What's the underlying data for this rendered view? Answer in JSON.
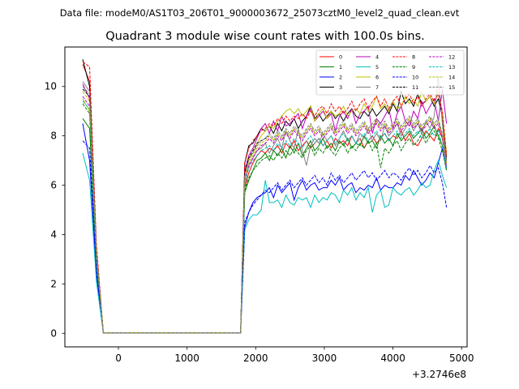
{
  "header": {
    "suptitle": "Data file: modeM0/AS1T03_206T01_9000003672_25073cztM0_level2_quad_clean.evt"
  },
  "chart_data": {
    "type": "line",
    "title": "Quadrant 3 module wise count rates with 100.0s bins.",
    "xlabel": "",
    "ylabel": "",
    "x_offset_label": "+3.2746e8",
    "xlim": [
      -780,
      5080
    ],
    "ylim": [
      -0.55,
      11.6
    ],
    "x_ticks": [
      0,
      1000,
      2000,
      3000,
      4000,
      5000
    ],
    "x_tick_labels": [
      "0",
      "1000",
      "2000",
      "3000",
      "4000",
      "5000"
    ],
    "y_ticks": [
      0,
      2,
      4,
      6,
      8,
      10
    ],
    "y_tick_labels": [
      "0",
      "2",
      "4",
      "6",
      "8",
      "10"
    ],
    "grid": false,
    "legend_position": "top-right",
    "x": [
      -520,
      -420,
      -320,
      -220,
      1780,
      1840,
      1900,
      1960,
      2020,
      2080,
      2140,
      2200,
      2260,
      2320,
      2380,
      2440,
      2500,
      2560,
      2620,
      2680,
      2740,
      2800,
      2860,
      2920,
      2980,
      3040,
      3100,
      3160,
      3220,
      3280,
      3340,
      3400,
      3460,
      3520,
      3580,
      3640,
      3700,
      3760,
      3820,
      3880,
      3940,
      4000,
      4060,
      4120,
      4180,
      4240,
      4300,
      4360,
      4420,
      4480,
      4540,
      4600,
      4660,
      4720,
      4780
    ],
    "series": [
      {
        "name": "0",
        "color": "#ff0000",
        "dash": "solid",
        "values": [
          10.9,
          10.2,
          3.2,
          0.02,
          0.02,
          5.9,
          6.5,
          6.9,
          7.2,
          7.4,
          7.3,
          7.5,
          7.4,
          7.6,
          7.3,
          7.7,
          7.5,
          7.8,
          7.4,
          7.6,
          7.8,
          7.5,
          7.7,
          7.9,
          7.6,
          7.8,
          7.5,
          7.9,
          7.7,
          7.8,
          7.6,
          8.0,
          7.7,
          7.9,
          7.5,
          7.8,
          8.0,
          7.7,
          7.9,
          8.1,
          7.8,
          8.0,
          7.9,
          8.2,
          7.8,
          8.1,
          7.7,
          7.6,
          7.9,
          8.2,
          8.0,
          7.8,
          8.3,
          7.9,
          6.9
        ]
      },
      {
        "name": "1",
        "color": "#008000",
        "dash": "solid",
        "values": [
          8.7,
          8.3,
          2.8,
          0.02,
          0.02,
          5.7,
          6.2,
          6.6,
          7.0,
          7.1,
          7.3,
          7.0,
          7.4,
          7.2,
          7.5,
          7.1,
          7.6,
          7.3,
          7.7,
          7.2,
          7.5,
          7.8,
          7.4,
          7.6,
          7.9,
          7.5,
          7.7,
          7.4,
          7.8,
          7.6,
          7.9,
          7.5,
          7.7,
          7.6,
          8.0,
          7.7,
          7.8,
          7.5,
          8.0,
          7.7,
          7.9,
          7.6,
          8.1,
          7.8,
          8.0,
          8.2,
          7.9,
          8.1,
          8.3,
          7.9,
          8.1,
          8.4,
          8.0,
          7.6,
          6.6
        ]
      },
      {
        "name": "2",
        "color": "#0000ff",
        "dash": "solid",
        "values": [
          8.5,
          7.0,
          2.4,
          0.02,
          0.02,
          4.3,
          4.9,
          5.3,
          5.5,
          5.6,
          5.7,
          5.9,
          5.5,
          6.0,
          5.7,
          5.9,
          6.1,
          5.4,
          5.9,
          6.2,
          5.8,
          6.0,
          6.1,
          5.8,
          5.9,
          5.9,
          6.2,
          6.0,
          6.3,
          5.8,
          6.0,
          6.1,
          5.7,
          5.9,
          5.8,
          6.0,
          5.9,
          6.3,
          5.8,
          6.0,
          5.9,
          5.9,
          6.1,
          6.0,
          6.4,
          6.2,
          6.6,
          6.3,
          6.0,
          6.2,
          6.5,
          6.3,
          6.9,
          7.5,
          6.7
        ]
      },
      {
        "name": "3",
        "color": "#000000",
        "dash": "solid",
        "values": [
          11.1,
          10.0,
          3.4,
          0.02,
          0.02,
          6.9,
          7.6,
          7.7,
          8.0,
          8.3,
          8.2,
          8.4,
          8.1,
          8.5,
          8.2,
          8.6,
          8.4,
          8.7,
          8.3,
          8.6,
          8.8,
          9.2,
          8.7,
          8.9,
          8.6,
          8.8,
          9.0,
          8.7,
          8.9,
          8.6,
          8.9,
          9.1,
          8.8,
          8.7,
          9.0,
          8.8,
          9.1,
          8.8,
          9.0,
          9.2,
          8.9,
          9.3,
          9.0,
          9.8,
          9.3,
          9.5,
          9.2,
          9.7,
          9.3,
          9.4,
          9.6,
          9.2,
          9.5,
          8.8,
          7.1
        ]
      },
      {
        "name": "4",
        "color": "#bf00bf",
        "dash": "solid",
        "values": [
          10.1,
          9.5,
          3.1,
          0.02,
          0.02,
          6.6,
          7.2,
          7.5,
          7.9,
          8.3,
          8.5,
          8.1,
          8.6,
          8.2,
          8.8,
          8.4,
          8.5,
          8.7,
          8.9,
          8.3,
          8.8,
          9.1,
          8.6,
          8.8,
          9.0,
          8.7,
          8.9,
          8.2,
          8.8,
          9.0,
          8.7,
          9.1,
          8.5,
          8.9,
          9.0,
          9.2,
          8.1,
          8.7,
          8.5,
          8.8,
          9.1,
          8.3,
          8.9,
          9.2,
          8.6,
          8.4,
          9.0,
          8.7,
          9.4,
          8.9,
          9.2,
          9.5,
          8.6,
          9.9,
          8.5
        ]
      },
      {
        "name": "5",
        "color": "#00bfbf",
        "dash": "solid",
        "values": [
          7.3,
          6.2,
          2.1,
          0.02,
          0.02,
          4.2,
          4.6,
          4.8,
          4.8,
          5.0,
          6.2,
          5.3,
          5.3,
          5.4,
          5.1,
          5.6,
          5.3,
          5.2,
          5.5,
          5.4,
          5.5,
          5.1,
          5.6,
          5.3,
          5.5,
          5.4,
          5.7,
          5.6,
          5.3,
          5.8,
          5.6,
          5.9,
          5.4,
          5.7,
          5.5,
          5.9,
          4.9,
          5.6,
          5.8,
          5.1,
          5.2,
          5.9,
          5.7,
          5.6,
          5.8,
          5.9,
          5.6,
          5.8,
          6.1,
          5.9,
          6.0,
          6.6,
          7.0,
          6.4,
          5.9
        ]
      },
      {
        "name": "6",
        "color": "#bfbf00",
        "dash": "solid",
        "values": [
          9.5,
          9.0,
          3.0,
          0.02,
          0.02,
          6.4,
          7.1,
          7.3,
          7.7,
          8.0,
          8.2,
          8.4,
          8.3,
          8.6,
          8.8,
          9.0,
          9.1,
          8.9,
          9.1,
          8.8,
          9.0,
          9.2,
          8.6,
          8.9,
          9.1,
          8.7,
          9.0,
          8.8,
          8.9,
          9.2,
          8.8,
          9.0,
          9.1,
          8.9,
          9.3,
          9.0,
          9.2,
          9.6,
          9.1,
          9.3,
          9.0,
          9.4,
          9.1,
          9.2,
          9.6,
          9.3,
          9.5,
          9.2,
          9.8,
          9.4,
          9.6,
          9.3,
          9.8,
          8.9,
          7.3
        ]
      },
      {
        "name": "7",
        "color": "#808080",
        "dash": "solid",
        "values": [
          10.2,
          9.8,
          3.3,
          0.02,
          0.02,
          6.0,
          6.8,
          7.1,
          7.4,
          7.5,
          7.7,
          7.3,
          7.6,
          7.9,
          7.5,
          8.2,
          7.8,
          7.5,
          8.3,
          7.4,
          6.8,
          7.6,
          7.9,
          7.7,
          8.1,
          7.8,
          8.0,
          7.6,
          7.9,
          8.2,
          7.8,
          8.0,
          7.7,
          8.1,
          7.9,
          8.3,
          7.8,
          8.1,
          7.8,
          8.4,
          8.0,
          8.2,
          8.5,
          8.0,
          8.3,
          8.6,
          8.2,
          8.5,
          8.1,
          8.6,
          8.3,
          8.8,
          10.4,
          8.5,
          6.9
        ]
      },
      {
        "name": "8",
        "color": "#ff0000",
        "dash": "dashed",
        "values": [
          11.0,
          10.8,
          3.6,
          0.02,
          0.02,
          6.9,
          7.5,
          7.8,
          8.0,
          8.2,
          8.3,
          8.5,
          8.4,
          8.7,
          8.5,
          8.8,
          8.6,
          8.8,
          8.7,
          8.9,
          8.7,
          9.0,
          8.8,
          9.1,
          9.2,
          8.9,
          9.3,
          9.0,
          9.2,
          8.9,
          9.1,
          9.4,
          9.0,
          9.3,
          9.5,
          9.1,
          9.4,
          9.6,
          9.2,
          9.5,
          9.1,
          9.4,
          9.6,
          9.2,
          9.5,
          9.7,
          9.3,
          9.6,
          9.2,
          9.5,
          9.7,
          9.4,
          9.7,
          9.0,
          7.2
        ]
      },
      {
        "name": "9",
        "color": "#008000",
        "dash": "dashed",
        "values": [
          9.3,
          8.9,
          3.0,
          0.02,
          0.02,
          5.8,
          6.3,
          6.6,
          6.8,
          7.0,
          7.1,
          7.2,
          7.0,
          7.3,
          7.1,
          7.4,
          7.2,
          7.5,
          7.3,
          7.1,
          7.4,
          7.6,
          7.2,
          7.5,
          7.3,
          7.6,
          7.4,
          7.2,
          7.5,
          7.7,
          7.3,
          7.6,
          7.4,
          7.7,
          7.5,
          7.8,
          7.4,
          7.7,
          6.7,
          7.5,
          7.3,
          7.6,
          7.8,
          7.4,
          7.7,
          7.9,
          7.6,
          7.8,
          8.1,
          7.7,
          8.0,
          8.2,
          7.9,
          7.4,
          6.6
        ]
      },
      {
        "name": "10",
        "color": "#0000ff",
        "dash": "dashed",
        "values": [
          7.8,
          7.5,
          2.6,
          0.02,
          0.02,
          4.5,
          4.9,
          5.2,
          5.4,
          5.6,
          5.8,
          5.7,
          5.9,
          6.1,
          5.8,
          6.0,
          6.2,
          5.9,
          6.1,
          6.3,
          6.0,
          6.2,
          6.4,
          6.1,
          6.3,
          6.0,
          6.5,
          6.2,
          6.4,
          6.1,
          6.3,
          6.5,
          6.2,
          6.4,
          6.6,
          6.3,
          6.5,
          6.2,
          6.4,
          6.6,
          6.3,
          6.5,
          6.4,
          6.2,
          6.5,
          6.7,
          6.4,
          6.6,
          6.3,
          6.5,
          6.8,
          6.5,
          6.7,
          6.1,
          5.1
        ]
      },
      {
        "name": "11",
        "color": "#000000",
        "dash": "dashed",
        "values": [
          9.9,
          9.6,
          3.2,
          0.02,
          0.02,
          6.5,
          7.1,
          7.4,
          7.7,
          7.8,
          7.9,
          8.0,
          7.8,
          8.1,
          7.9,
          8.2,
          8.0,
          8.3,
          8.1,
          7.9,
          8.2,
          8.4,
          8.1,
          8.3,
          8.0,
          8.2,
          8.4,
          8.1,
          8.3,
          8.5,
          8.2,
          8.4,
          8.1,
          8.3,
          8.5,
          8.2,
          8.4,
          8.6,
          8.3,
          8.5,
          8.2,
          8.4,
          8.6,
          8.3,
          8.5,
          8.7,
          8.4,
          8.6,
          8.3,
          8.5,
          8.7,
          8.4,
          8.6,
          8.0,
          7.0
        ]
      },
      {
        "name": "12",
        "color": "#bf00bf",
        "dash": "dashed",
        "values": [
          9.6,
          9.2,
          3.1,
          0.02,
          0.02,
          6.2,
          6.8,
          7.1,
          7.4,
          7.6,
          7.7,
          7.9,
          7.7,
          8.0,
          7.8,
          8.1,
          7.9,
          8.2,
          8.0,
          7.8,
          8.1,
          8.3,
          8.0,
          8.2,
          7.9,
          8.1,
          8.3,
          8.0,
          8.2,
          8.4,
          8.1,
          8.3,
          8.0,
          8.2,
          8.4,
          8.1,
          8.3,
          8.5,
          8.2,
          8.4,
          8.1,
          8.3,
          8.5,
          8.2,
          8.4,
          8.6,
          8.3,
          8.5,
          8.2,
          8.4,
          8.6,
          8.3,
          8.5,
          7.9,
          6.8
        ]
      },
      {
        "name": "13",
        "color": "#00bfbf",
        "dash": "dashed",
        "values": [
          9.4,
          9.1,
          3.0,
          0.02,
          0.02,
          6.1,
          6.7,
          7.0,
          7.2,
          7.4,
          7.5,
          7.6,
          7.4,
          7.7,
          7.5,
          7.8,
          7.6,
          7.9,
          7.7,
          7.5,
          7.8,
          8.0,
          7.7,
          7.9,
          7.6,
          7.8,
          8.0,
          7.7,
          7.9,
          8.1,
          7.8,
          8.0,
          7.7,
          7.9,
          8.1,
          7.8,
          8.0,
          8.2,
          7.9,
          8.1,
          7.8,
          8.0,
          8.2,
          7.9,
          8.1,
          8.3,
          8.0,
          8.2,
          7.9,
          8.1,
          8.3,
          8.0,
          8.2,
          7.6,
          6.7
        ]
      },
      {
        "name": "14",
        "color": "#bfbf00",
        "dash": "dashed",
        "values": [
          9.8,
          9.4,
          3.2,
          0.02,
          0.02,
          6.3,
          6.9,
          7.2,
          7.5,
          7.7,
          7.8,
          8.0,
          7.8,
          8.1,
          7.9,
          8.2,
          8.0,
          8.3,
          8.1,
          7.9,
          8.2,
          8.4,
          8.1,
          8.3,
          8.0,
          8.2,
          8.4,
          8.1,
          8.3,
          8.5,
          8.2,
          8.4,
          8.1,
          8.3,
          8.5,
          8.2,
          8.4,
          8.6,
          8.3,
          8.5,
          8.2,
          8.4,
          8.6,
          8.3,
          8.5,
          8.7,
          8.4,
          8.6,
          8.3,
          8.5,
          8.7,
          8.4,
          8.6,
          8.0,
          6.9
        ]
      },
      {
        "name": "15",
        "color": "#808080",
        "dash": "dashed",
        "values": [
          10.0,
          9.7,
          3.3,
          0.02,
          0.02,
          6.4,
          7.0,
          7.3,
          7.6,
          7.8,
          7.9,
          8.1,
          7.9,
          8.2,
          8.0,
          8.3,
          8.1,
          8.4,
          8.2,
          8.0,
          8.3,
          8.5,
          8.2,
          8.4,
          8.1,
          8.3,
          8.5,
          8.2,
          8.4,
          8.6,
          8.3,
          8.5,
          8.2,
          8.4,
          8.6,
          8.3,
          8.5,
          8.7,
          8.4,
          8.6,
          8.3,
          8.5,
          8.7,
          8.4,
          8.6,
          8.8,
          8.5,
          8.7,
          8.4,
          8.6,
          8.8,
          8.5,
          8.7,
          8.1,
          7.0
        ]
      }
    ]
  }
}
